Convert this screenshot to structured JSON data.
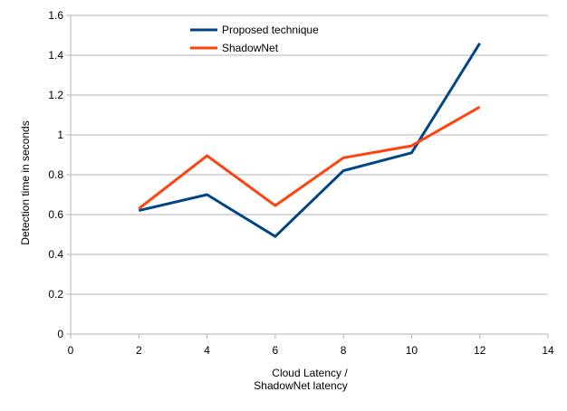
{
  "chart_data": {
    "type": "line",
    "xlabel_lines": [
      "Cloud Latency /",
      "ShadowNet latency"
    ],
    "ylabel": "Detection time in seconds",
    "xlim": [
      0,
      14
    ],
    "ylim": [
      0,
      1.6
    ],
    "xticks": [
      0,
      2,
      4,
      6,
      8,
      10,
      12,
      14
    ],
    "yticks": [
      0,
      0.2,
      0.4,
      0.6,
      0.8,
      1,
      1.2,
      1.4,
      1.6
    ],
    "grid": "horizontal",
    "legend_position": "top-left",
    "series": [
      {
        "name": "Proposed technique",
        "color": "#004586",
        "x": [
          2,
          4,
          6,
          8,
          10,
          12
        ],
        "y": [
          0.62,
          0.7,
          0.49,
          0.82,
          0.91,
          1.46
        ]
      },
      {
        "name": "ShadowNet",
        "color": "#ff420e",
        "x": [
          2,
          4,
          6,
          8,
          10,
          12
        ],
        "y": [
          0.63,
          0.895,
          0.645,
          0.885,
          0.945,
          1.14
        ]
      }
    ]
  }
}
